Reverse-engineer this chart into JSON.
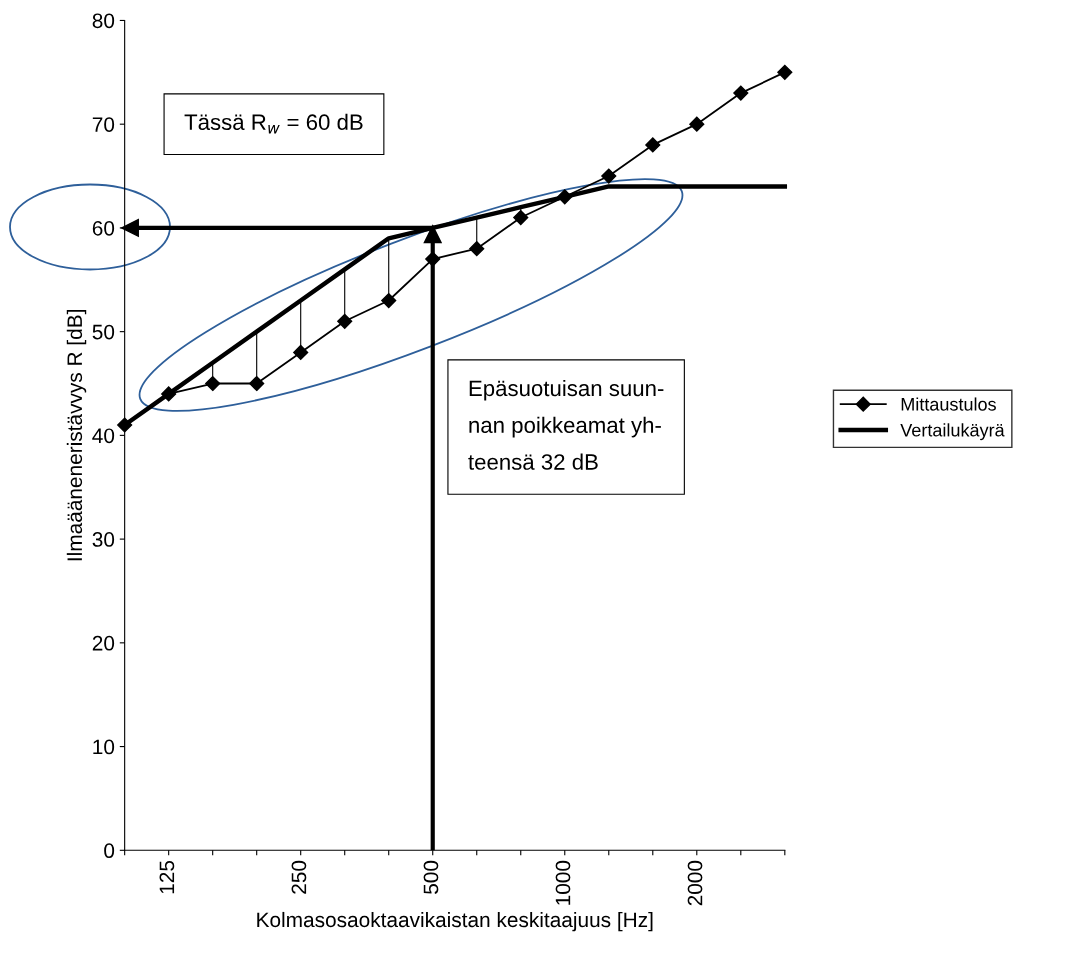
{
  "chart_data": {
    "type": "line",
    "xlabel": "Kolmasosaoktaavikaistan keskitaajuus [Hz]",
    "ylabel": "Ilmaääneneristävvys R [dB]",
    "categories": [
      null,
      "125",
      null,
      null,
      "250",
      null,
      null,
      "500",
      null,
      null,
      "1000",
      null,
      null,
      "2000",
      null,
      null
    ],
    "series": [
      {
        "name": "Mittaustulos",
        "color": "#000000",
        "marker": "diamond",
        "values": [
          41,
          44,
          45,
          45,
          48,
          51,
          53,
          57,
          58,
          61,
          63,
          65,
          68,
          70,
          73,
          75
        ],
        "errors": [
          null,
          null,
          [
            45,
            47
          ],
          [
            45,
            50
          ],
          [
            48,
            53
          ],
          [
            51,
            56
          ],
          [
            53,
            59
          ],
          [
            57,
            60
          ],
          [
            58,
            61
          ],
          [
            61,
            62
          ],
          null,
          null,
          null,
          null,
          null,
          null
        ]
      },
      {
        "name": "Vertailukäyrä",
        "color": "#000000",
        "marker": "none",
        "values": [
          41,
          44,
          47,
          50,
          53,
          56,
          59,
          60,
          61,
          62,
          63,
          64,
          64,
          64,
          64,
          64
        ]
      }
    ],
    "ylim": [
      0,
      80
    ],
    "yticks": [
      0,
      10,
      20,
      30,
      40,
      50,
      60,
      70,
      80
    ],
    "ref_lines": [
      {
        "axis": "y",
        "value": 60
      },
      {
        "axis": "x",
        "value": "500"
      }
    ],
    "annotations": [
      "Tässä R$_{w}$ = 60 dB",
      "Epäsuotuisan suun-\nnan poikkeamat yh-\nteensä 32 dB"
    ],
    "legend": "right",
    "grid": false
  }
}
